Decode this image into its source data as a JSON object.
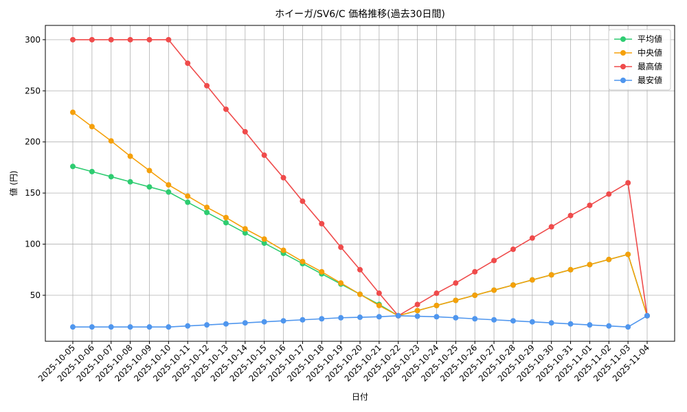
{
  "chart_data": {
    "type": "line",
    "title": "ホイーガ/SV6/C 価格推移(過去30日間)",
    "x_label": "日付",
    "y_label": "値 (円)",
    "categories": [
      "2025-10-05",
      "2025-10-06",
      "2025-10-07",
      "2025-10-08",
      "2025-10-09",
      "2025-10-10",
      "2025-10-11",
      "2025-10-12",
      "2025-10-13",
      "2025-10-14",
      "2025-10-15",
      "2025-10-16",
      "2025-10-17",
      "2025-10-18",
      "2025-10-19",
      "2025-10-20",
      "2025-10-21",
      "2025-10-22",
      "2025-10-23",
      "2025-10-24",
      "2025-10-25",
      "2025-10-26",
      "2025-10-27",
      "2025-10-28",
      "2025-10-29",
      "2025-10-30",
      "2025-10-31",
      "2025-11-01",
      "2025-11-02",
      "2025-11-03",
      "2025-11-04"
    ],
    "series": [
      {
        "name": "平均値",
        "color": "#2ecc71",
        "values": [
          176,
          171,
          166,
          161,
          156,
          151,
          141,
          131,
          121,
          111,
          101,
          91,
          81,
          71,
          61,
          51,
          41,
          30,
          35,
          40,
          45,
          50,
          55,
          60,
          65,
          70,
          75,
          80,
          85,
          90,
          30
        ]
      },
      {
        "name": "中央値",
        "color": "#f5a00a",
        "values": [
          229,
          215,
          201,
          186,
          172,
          158,
          147,
          136,
          126,
          115,
          105,
          94,
          83,
          73,
          62,
          51,
          40,
          30,
          35,
          40,
          45,
          50,
          55,
          60,
          65,
          70,
          75,
          80,
          85,
          90,
          30
        ]
      },
      {
        "name": "最高値",
        "color": "#ef4b4b",
        "values": [
          300,
          300,
          300,
          300,
          300,
          300,
          277,
          255,
          232,
          210,
          187,
          165,
          142,
          120,
          97,
          75,
          52,
          30,
          41,
          52,
          62,
          73,
          84,
          95,
          106,
          117,
          128,
          138,
          149,
          160,
          30
        ]
      },
      {
        "name": "最安値",
        "color": "#4f96ee",
        "values": [
          19,
          19,
          19,
          19,
          19,
          19,
          20,
          21,
          22,
          23,
          24,
          25,
          26,
          27,
          28,
          28.5,
          29,
          30,
          29.5,
          29,
          28,
          27,
          26,
          25,
          24,
          23,
          22,
          21,
          20,
          19,
          30
        ]
      }
    ],
    "ylim": [
      5,
      314
    ],
    "yticks": [
      50,
      100,
      150,
      200,
      250,
      300
    ],
    "grid": true,
    "legend": "upper right"
  }
}
